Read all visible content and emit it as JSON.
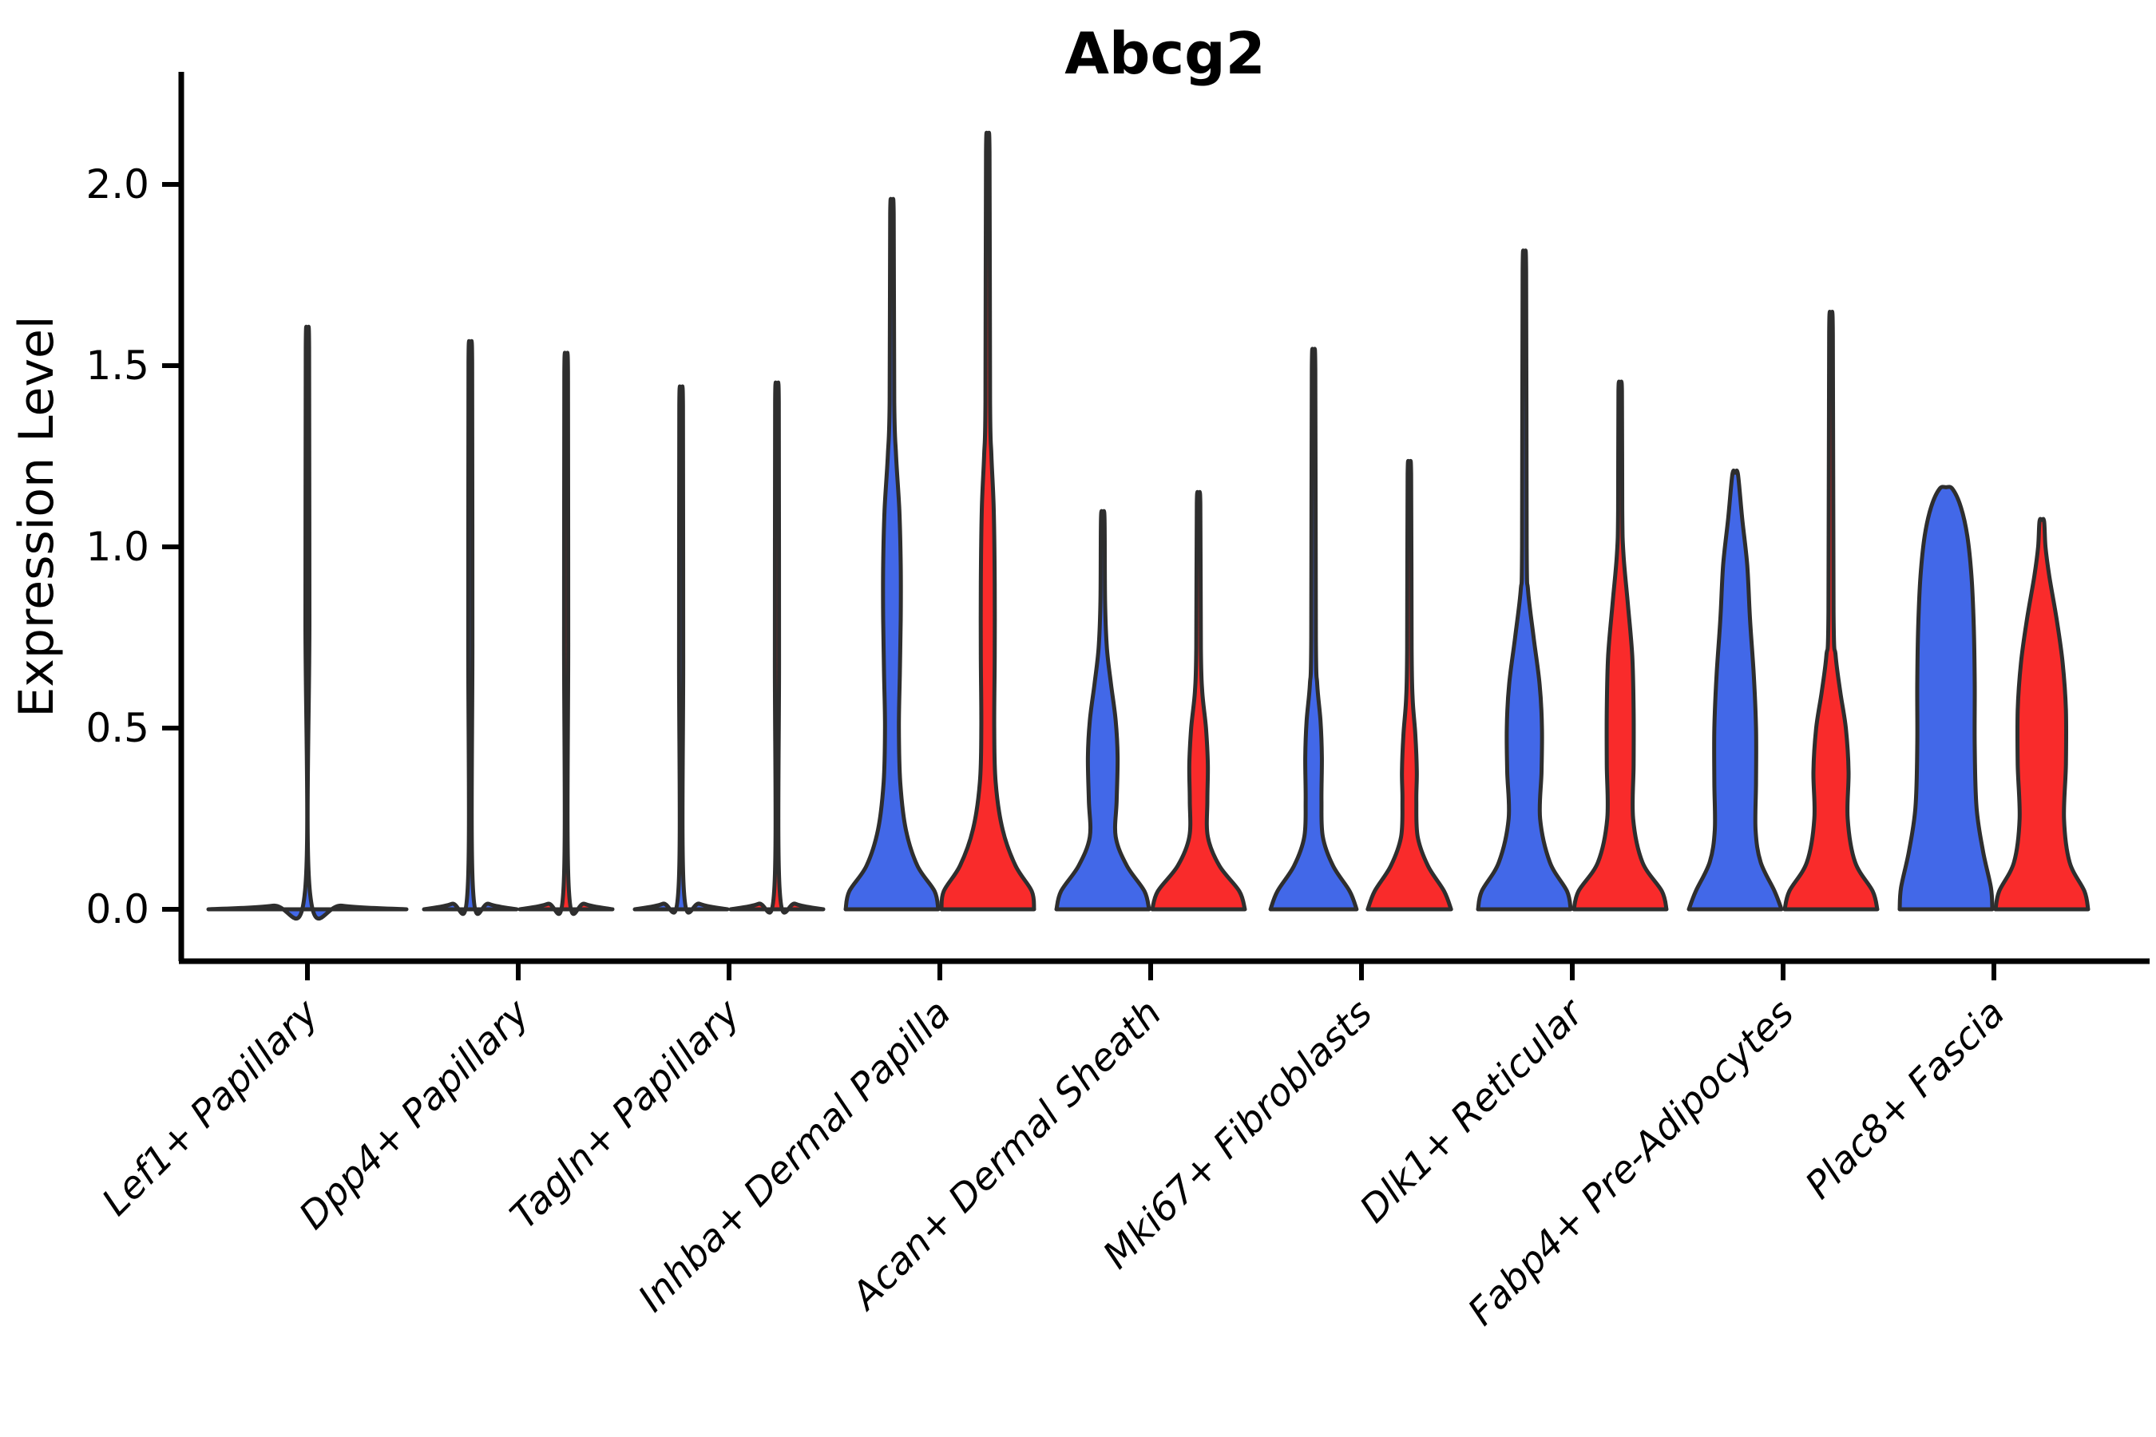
{
  "chart_data": {
    "type": "violin",
    "title": "Abcg2",
    "xlabel": "",
    "ylabel": "Expression Level",
    "yticks": [
      "0.0",
      "0.5",
      "1.0",
      "1.5",
      "2.0"
    ],
    "ytick_values": [
      0.0,
      0.5,
      1.0,
      1.5,
      2.0
    ],
    "ylim": [
      -0.14,
      2.31
    ],
    "x_tick_rotation": 45,
    "legend": "none",
    "grid": false,
    "colors": {
      "group1_fill": "#4268E8",
      "group2_fill": "#F92B2B",
      "violin_edge": "#2E2E2E",
      "axis": "#000000"
    },
    "categories": [
      "Lef1+ Papillary",
      "Dpp4+ Papillary",
      "Tagln+ Papillary",
      "Inhba+ Dermal Papilla",
      "Acan+ Dermal Sheath",
      "Mki67+ Fibroblasts",
      "Dlk1+ Reticular",
      "Fabp4+ Pre-Adipocytes",
      "Plac8+ Fascia"
    ],
    "violins": [
      {
        "category": "Lef1+ Papillary",
        "group1": {
          "max_expression": 1.55,
          "wide": true,
          "profile": [
            [
              0,
              1
            ],
            [
              0.01,
              0.35
            ],
            [
              0.04,
              0.028
            ],
            [
              0.8,
              0.02
            ],
            [
              1.55,
              0.017
            ]
          ]
        },
        "group2": null
      },
      {
        "category": "Dpp4+ Papillary",
        "group1": {
          "max_expression": 1.51,
          "profile": [
            [
              0,
              1
            ],
            [
              0.015,
              0.4
            ],
            [
              0.05,
              0.06
            ],
            [
              0.75,
              0.045
            ],
            [
              1.51,
              0.04
            ]
          ]
        },
        "group2": {
          "max_expression": 1.48,
          "profile": [
            [
              0,
              1
            ],
            [
              0.015,
              0.4
            ],
            [
              0.05,
              0.06
            ],
            [
              0.75,
              0.045
            ],
            [
              1.48,
              0.04
            ]
          ]
        }
      },
      {
        "category": "Tagln+ Papillary",
        "group1": {
          "max_expression": 1.39,
          "profile": [
            [
              0,
              1
            ],
            [
              0.015,
              0.4
            ],
            [
              0.05,
              0.06
            ],
            [
              0.7,
              0.045
            ],
            [
              1.39,
              0.04
            ]
          ]
        },
        "group2": {
          "max_expression": 1.4,
          "profile": [
            [
              0,
              1
            ],
            [
              0.015,
              0.4
            ],
            [
              0.05,
              0.06
            ],
            [
              0.7,
              0.045
            ],
            [
              1.4,
              0.04
            ]
          ]
        }
      },
      {
        "category": "Inhba+ Dermal Papilla",
        "group1": {
          "max_expression": 1.92,
          "profile": [
            [
              0,
              1
            ],
            [
              0.05,
              0.92
            ],
            [
              0.12,
              0.55
            ],
            [
              0.22,
              0.3
            ],
            [
              0.35,
              0.18
            ],
            [
              0.5,
              0.15
            ],
            [
              0.65,
              0.17
            ],
            [
              0.8,
              0.19
            ],
            [
              0.95,
              0.19
            ],
            [
              1.1,
              0.16
            ],
            [
              1.25,
              0.09
            ],
            [
              1.4,
              0.05
            ],
            [
              1.92,
              0.038
            ]
          ]
        },
        "group2": {
          "max_expression": 2.09,
          "profile": [
            [
              0,
              1
            ],
            [
              0.05,
              0.95
            ],
            [
              0.12,
              0.6
            ],
            [
              0.22,
              0.32
            ],
            [
              0.35,
              0.17
            ],
            [
              0.5,
              0.14
            ],
            [
              0.7,
              0.15
            ],
            [
              0.9,
              0.15
            ],
            [
              1.1,
              0.13
            ],
            [
              1.25,
              0.08
            ],
            [
              1.4,
              0.05
            ],
            [
              2.09,
              0.038
            ]
          ]
        }
      },
      {
        "category": "Acan+ Dermal Sheath",
        "group1": {
          "max_expression": 1.08,
          "profile": [
            [
              0,
              1
            ],
            [
              0.05,
              0.9
            ],
            [
              0.12,
              0.52
            ],
            [
              0.2,
              0.28
            ],
            [
              0.3,
              0.3
            ],
            [
              0.42,
              0.32
            ],
            [
              0.52,
              0.28
            ],
            [
              0.62,
              0.18
            ],
            [
              0.72,
              0.09
            ],
            [
              0.85,
              0.05
            ],
            [
              1.08,
              0.038
            ]
          ]
        },
        "group2": {
          "max_expression": 1.12,
          "profile": [
            [
              0,
              1
            ],
            [
              0.05,
              0.88
            ],
            [
              0.12,
              0.45
            ],
            [
              0.2,
              0.2
            ],
            [
              0.3,
              0.19
            ],
            [
              0.4,
              0.2
            ],
            [
              0.5,
              0.16
            ],
            [
              0.6,
              0.08
            ],
            [
              0.72,
              0.05
            ],
            [
              1.12,
              0.038
            ]
          ]
        }
      },
      {
        "category": "Mki67+ Fibroblasts",
        "group1": {
          "max_expression": 1.49,
          "profile": [
            [
              0,
              0.93
            ],
            [
              0.05,
              0.78
            ],
            [
              0.12,
              0.42
            ],
            [
              0.2,
              0.2
            ],
            [
              0.3,
              0.17
            ],
            [
              0.42,
              0.18
            ],
            [
              0.52,
              0.15
            ],
            [
              0.62,
              0.08
            ],
            [
              0.75,
              0.05
            ],
            [
              1.49,
              0.038
            ]
          ]
        },
        "group2": {
          "max_expression": 1.2,
          "profile": [
            [
              0,
              0.9
            ],
            [
              0.05,
              0.75
            ],
            [
              0.12,
              0.4
            ],
            [
              0.2,
              0.18
            ],
            [
              0.3,
              0.15
            ],
            [
              0.38,
              0.16
            ],
            [
              0.48,
              0.13
            ],
            [
              0.58,
              0.07
            ],
            [
              0.72,
              0.048
            ],
            [
              1.2,
              0.038
            ]
          ]
        }
      },
      {
        "category": "Dlk1+ Reticular",
        "group1": {
          "max_expression": 1.76,
          "profile": [
            [
              0,
              1
            ],
            [
              0.05,
              0.92
            ],
            [
              0.13,
              0.55
            ],
            [
              0.25,
              0.34
            ],
            [
              0.38,
              0.37
            ],
            [
              0.5,
              0.38
            ],
            [
              0.62,
              0.33
            ],
            [
              0.75,
              0.2
            ],
            [
              0.88,
              0.08
            ],
            [
              1.0,
              0.05
            ],
            [
              1.76,
              0.038
            ]
          ]
        },
        "group2": {
          "max_expression": 1.43,
          "profile": [
            [
              0,
              1
            ],
            [
              0.05,
              0.9
            ],
            [
              0.13,
              0.48
            ],
            [
              0.25,
              0.28
            ],
            [
              0.4,
              0.29
            ],
            [
              0.55,
              0.29
            ],
            [
              0.7,
              0.26
            ],
            [
              0.85,
              0.16
            ],
            [
              0.98,
              0.07
            ],
            [
              1.1,
              0.045
            ],
            [
              1.43,
              0.038
            ]
          ]
        }
      },
      {
        "category": "Fabp4+ Pre-Adipocytes",
        "group1": {
          "max_expression": 1.2,
          "profile": [
            [
              0,
              1
            ],
            [
              0.05,
              0.85
            ],
            [
              0.13,
              0.55
            ],
            [
              0.22,
              0.44
            ],
            [
              0.35,
              0.45
            ],
            [
              0.5,
              0.45
            ],
            [
              0.65,
              0.4
            ],
            [
              0.8,
              0.32
            ],
            [
              0.95,
              0.26
            ],
            [
              1.08,
              0.15
            ],
            [
              1.2,
              0.06
            ]
          ]
        },
        "group2": {
          "max_expression": 1.59,
          "profile": [
            [
              0,
              1
            ],
            [
              0.05,
              0.9
            ],
            [
              0.13,
              0.52
            ],
            [
              0.25,
              0.36
            ],
            [
              0.38,
              0.38
            ],
            [
              0.5,
              0.32
            ],
            [
              0.6,
              0.2
            ],
            [
              0.7,
              0.1
            ],
            [
              0.82,
              0.055
            ],
            [
              1.59,
              0.04
            ]
          ]
        }
      },
      {
        "category": "Plac8+ Fascia",
        "group1": {
          "max_expression": 1.16,
          "profile": [
            [
              0,
              1
            ],
            [
              0.06,
              0.97
            ],
            [
              0.16,
              0.8
            ],
            [
              0.28,
              0.66
            ],
            [
              0.45,
              0.62
            ],
            [
              0.62,
              0.62
            ],
            [
              0.78,
              0.6
            ],
            [
              0.92,
              0.55
            ],
            [
              1.03,
              0.46
            ],
            [
              1.11,
              0.32
            ],
            [
              1.16,
              0.14
            ]
          ]
        },
        "group2": {
          "max_expression": 1.07,
          "profile": [
            [
              0,
              1
            ],
            [
              0.05,
              0.92
            ],
            [
              0.13,
              0.6
            ],
            [
              0.25,
              0.48
            ],
            [
              0.4,
              0.52
            ],
            [
              0.55,
              0.52
            ],
            [
              0.68,
              0.45
            ],
            [
              0.8,
              0.32
            ],
            [
              0.92,
              0.16
            ],
            [
              1.0,
              0.08
            ],
            [
              1.07,
              0.05
            ]
          ]
        }
      }
    ]
  }
}
